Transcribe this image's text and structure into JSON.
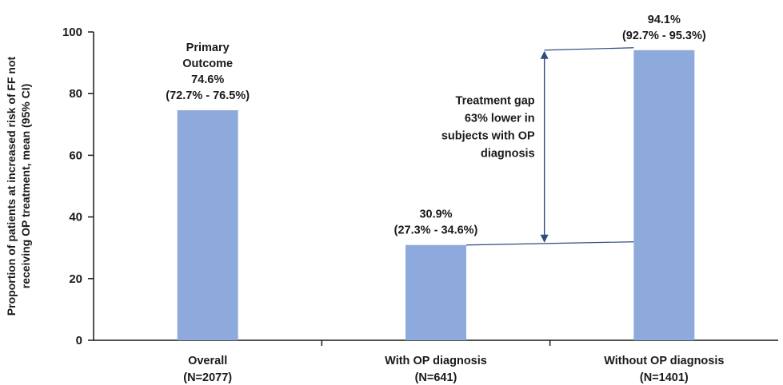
{
  "chart_data": {
    "type": "bar",
    "ylabel_lines": [
      "Proportion of patients at increased risk of FF not",
      "receiving OP treatment, mean (95% CI)"
    ],
    "ylim": [
      0,
      100
    ],
    "yticks": [
      0,
      20,
      40,
      60,
      80,
      100
    ],
    "grid": false,
    "categories": [
      {
        "label": "Overall",
        "n": "(N=2077)"
      },
      {
        "label": "With OP diagnosis",
        "n": "(N=641)"
      },
      {
        "label": "Without OP diagnosis",
        "n": "(N=1401)"
      }
    ],
    "values": [
      74.6,
      30.9,
      94.1
    ],
    "bar_labels": [
      [
        "Primary",
        "Outcome",
        "74.6%",
        "(72.7% - 76.5%)"
      ],
      [
        "30.9%",
        "(27.3% - 34.6%)"
      ],
      [
        "94.1%",
        "(92.7% - 95.3%)"
      ]
    ],
    "annotation": {
      "lines": [
        "Treatment gap",
        "63% lower in",
        "subjects with OP",
        "diagnosis"
      ],
      "from_value": 30.9,
      "to_value": 94.1
    },
    "colors": {
      "bar": "#8EA9DB",
      "axis": "#1a1a1a",
      "connector": "#2E4A7F"
    }
  }
}
